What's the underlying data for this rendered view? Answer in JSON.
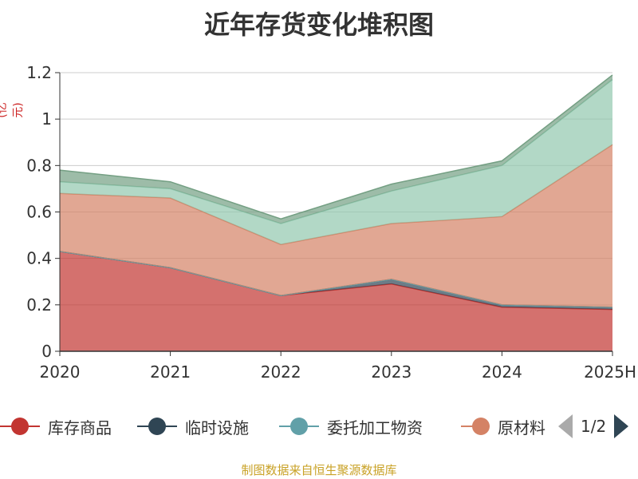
{
  "colors": {
    "title": "#333333",
    "unit": "#cc2222",
    "source": "#c9a227",
    "axis": "#333333",
    "grid": "#cccccc"
  },
  "chart_data": {
    "type": "area",
    "stacked": true,
    "title": "近年存货变化堆积图",
    "unit_label": "(亿元)",
    "categories": [
      "2020",
      "2021",
      "2022",
      "2023",
      "2024",
      "2025H"
    ],
    "ylim": [
      0,
      1.2
    ],
    "yticks": [
      "0",
      "0.2",
      "0.4",
      "0.6",
      "0.8",
      "1",
      "1.2"
    ],
    "grid": true,
    "legend_position": "bottom",
    "series": [
      {
        "name": "库存商品",
        "color": "#c23531",
        "values": [
          0.43,
          0.36,
          0.24,
          0.29,
          0.19,
          0.18
        ]
      },
      {
        "name": "临时设施",
        "color": "#2f4554",
        "values": [
          0.0,
          0.0,
          0.0,
          0.02,
          0.01,
          0.01
        ]
      },
      {
        "name": "委托加工物资",
        "color": "#61a0a8",
        "values": [
          0.0,
          0.0,
          0.0,
          0.0,
          0.0,
          0.0
        ]
      },
      {
        "name": "原材料",
        "color": "#d48265",
        "values": [
          0.25,
          0.3,
          0.22,
          0.24,
          0.38,
          0.7
        ]
      },
      {
        "name": "",
        "color": "#91c7ae",
        "values": [
          0.05,
          0.04,
          0.09,
          0.14,
          0.22,
          0.28
        ]
      },
      {
        "name": "",
        "color": "#749f83",
        "values": [
          0.05,
          0.03,
          0.02,
          0.03,
          0.02,
          0.02
        ]
      }
    ]
  },
  "legend": {
    "page_indicator": "1/2"
  },
  "source": "制图数据来自恒生聚源数据库"
}
